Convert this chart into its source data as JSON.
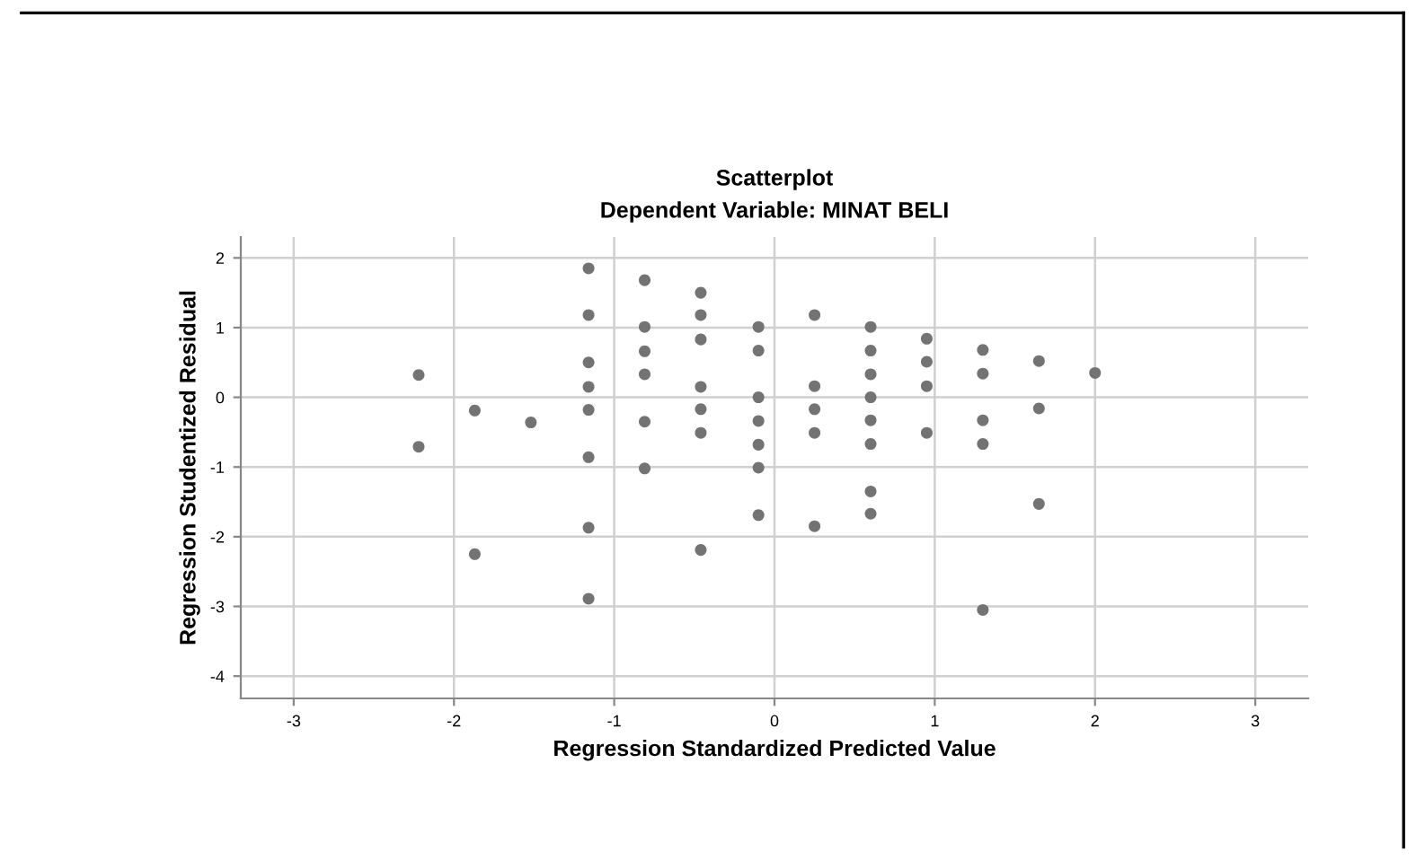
{
  "chart_data": {
    "type": "scatter",
    "title": "Scatterplot",
    "subtitle": "Dependent Variable: MINAT BELI",
    "xlabel": "Regression Standardized Predicted Value",
    "ylabel": "Regression Studentized Residual",
    "series": [
      {
        "color": "#737373",
        "x": [
          -2.22,
          -2.22,
          -1.87,
          -1.87,
          -1.52,
          -1.16,
          -1.16,
          -1.16,
          -1.16,
          -1.16,
          -1.16,
          -1.16,
          -1.16,
          -0.81,
          -0.81,
          -0.81,
          -0.81,
          -0.81,
          -0.81,
          -0.46,
          -0.46,
          -0.46,
          -0.46,
          -0.46,
          -0.46,
          -0.46,
          -0.1,
          -0.1,
          -0.1,
          -0.1,
          -0.1,
          -0.1,
          -0.1,
          0.25,
          0.25,
          0.25,
          0.25,
          0.25,
          0.6,
          0.6,
          0.6,
          0.6,
          0.6,
          0.6,
          0.6,
          0.6,
          0.95,
          0.95,
          0.95,
          0.95,
          1.3,
          1.3,
          1.3,
          1.3,
          1.3,
          1.65,
          1.65,
          1.65,
          2.0
        ],
        "values": [
          0.32,
          -0.71,
          -0.19,
          -2.25,
          -0.36,
          1.85,
          1.18,
          0.5,
          0.15,
          -0.18,
          -0.86,
          -1.87,
          -2.89,
          1.68,
          1.01,
          0.66,
          0.33,
          -0.35,
          -1.02,
          1.5,
          1.18,
          0.83,
          0.15,
          -0.17,
          -0.51,
          -2.19,
          1.01,
          0.67,
          0.0,
          -0.34,
          -0.68,
          -1.01,
          -1.69,
          1.18,
          0.16,
          -0.17,
          -0.51,
          -1.85,
          1.01,
          0.67,
          0.33,
          0.0,
          -0.33,
          -0.67,
          -1.35,
          -1.67,
          0.84,
          0.51,
          0.16,
          -0.51,
          0.68,
          0.34,
          -0.33,
          -0.67,
          -3.05,
          0.52,
          -0.16,
          -1.53,
          0.35
        ]
      }
    ],
    "xlim": [
      -3.33,
      3.33
    ],
    "ylim": [
      -4.32,
      2.3
    ],
    "xticks": [
      -3,
      -2,
      -1,
      0,
      1,
      2,
      3
    ],
    "yticks": [
      -4,
      -3,
      -2,
      -1,
      0,
      1,
      2
    ],
    "grid": true,
    "marker": "circle",
    "legend": false
  }
}
